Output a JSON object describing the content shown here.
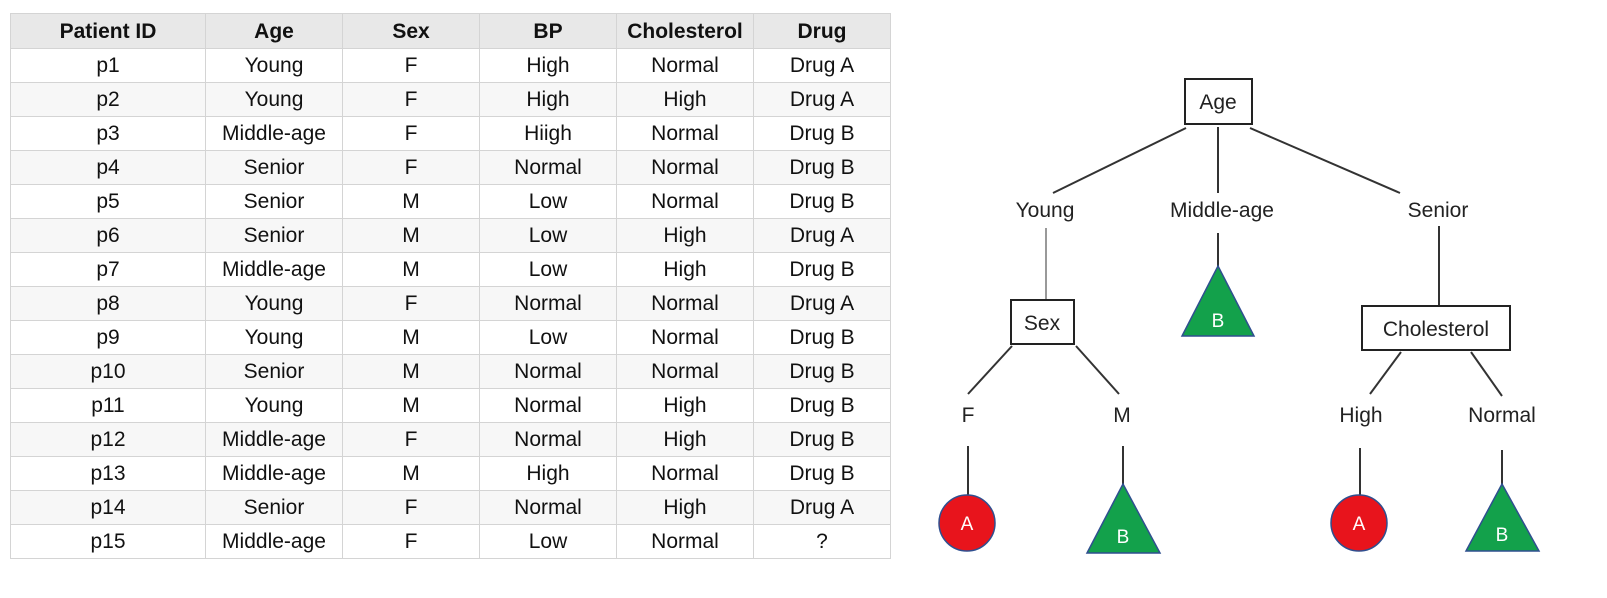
{
  "table": {
    "headers": [
      "Patient ID",
      "Age",
      "Sex",
      "BP",
      "Cholesterol",
      "Drug"
    ],
    "rows": [
      [
        "p1",
        "Young",
        "F",
        "High",
        "Normal",
        "Drug A"
      ],
      [
        "p2",
        "Young",
        "F",
        "High",
        "High",
        "Drug A"
      ],
      [
        "p3",
        "Middle-age",
        "F",
        "Hiigh",
        "Normal",
        "Drug B"
      ],
      [
        "p4",
        "Senior",
        "F",
        "Normal",
        "Normal",
        "Drug B"
      ],
      [
        "p5",
        "Senior",
        "M",
        "Low",
        "Normal",
        "Drug B"
      ],
      [
        "p6",
        "Senior",
        "M",
        "Low",
        "High",
        "Drug A"
      ],
      [
        "p7",
        "Middle-age",
        "M",
        "Low",
        "High",
        "Drug B"
      ],
      [
        "p8",
        "Young",
        "F",
        "Normal",
        "Normal",
        "Drug A"
      ],
      [
        "p9",
        "Young",
        "M",
        "Low",
        "Normal",
        "Drug B"
      ],
      [
        "p10",
        "Senior",
        "M",
        "Normal",
        "Normal",
        "Drug B"
      ],
      [
        "p11",
        "Young",
        "M",
        "Normal",
        "High",
        "Drug B"
      ],
      [
        "p12",
        "Middle-age",
        "F",
        "Normal",
        "High",
        "Drug B"
      ],
      [
        "p13",
        "Middle-age",
        "M",
        "High",
        "Normal",
        "Drug B"
      ],
      [
        "p14",
        "Senior",
        "F",
        "Normal",
        "High",
        "Drug A"
      ],
      [
        "p15",
        "Middle-age",
        "F",
        "Low",
        "Normal",
        "?"
      ]
    ]
  },
  "tree": {
    "root": "Age",
    "age_branches": [
      "Young",
      "Middle-age",
      "Senior"
    ],
    "sex_node": "Sex",
    "sex_branches": [
      "F",
      "M"
    ],
    "cholesterol_node": "Cholesterol",
    "cholesterol_branches": [
      "High",
      "Normal"
    ],
    "leaves": {
      "middle_age": "B",
      "sex_f": "A",
      "sex_m": "B",
      "chol_high": "A",
      "chol_normal": "B"
    },
    "colors": {
      "drug_a": "#e8141c",
      "drug_b": "#13a14b",
      "line": "#333333"
    }
  }
}
